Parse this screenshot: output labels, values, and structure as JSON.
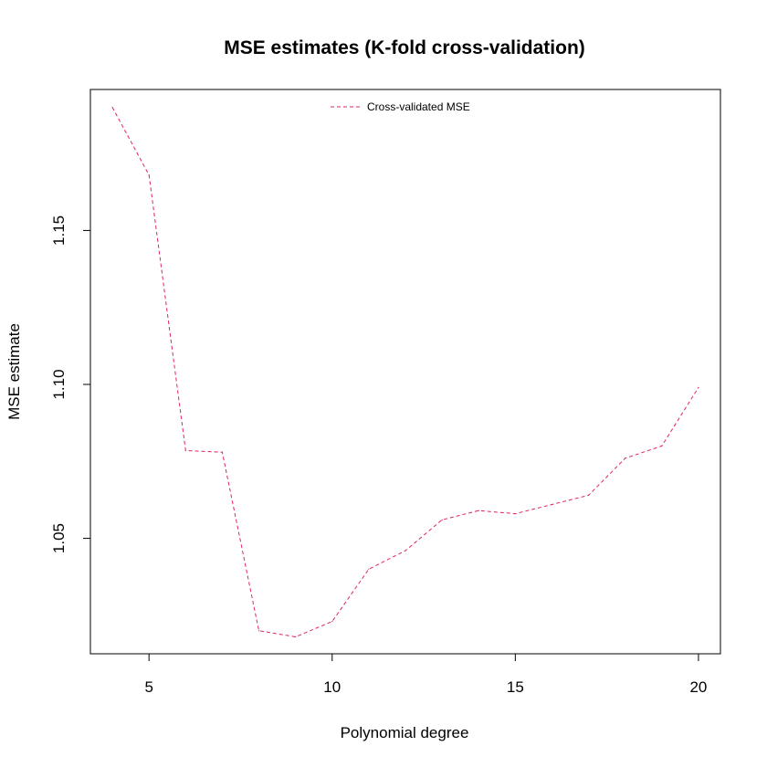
{
  "chart_data": {
    "type": "line",
    "title": "MSE estimates (K-fold cross-validation)",
    "xlabel": "Polynomial degree",
    "ylabel": "MSE estimate",
    "x": [
      4,
      5,
      6,
      7,
      8,
      9,
      10,
      11,
      12,
      13,
      14,
      15,
      16,
      17,
      18,
      19,
      20
    ],
    "series": [
      {
        "name": "Cross-validated MSE",
        "values": [
          1.19,
          1.168,
          1.0785,
          1.078,
          1.02,
          1.018,
          1.023,
          1.04,
          1.046,
          1.056,
          1.059,
          1.058,
          1.061,
          1.064,
          1.076,
          1.08,
          1.099
        ],
        "color": "#e0245e",
        "line_style": "dashed"
      }
    ],
    "xlim": [
      3.4,
      20.6
    ],
    "ylim": [
      1.0125,
      1.1958
    ],
    "xticks": [
      5,
      10,
      15,
      20
    ],
    "yticks": [
      1.05,
      1.1,
      1.15
    ],
    "ytick_labels": [
      "1.05",
      "1.10",
      "1.15"
    ],
    "grid": false,
    "legend_position": "top"
  }
}
